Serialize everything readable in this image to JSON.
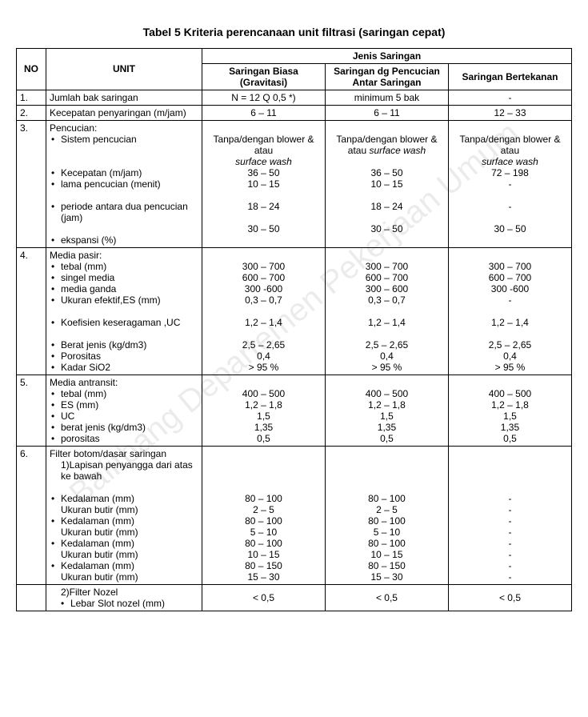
{
  "title": "Tabel 5  Kriteria perencanaan unit filtrasi (saringan cepat)",
  "watermark": "Balitbang Departemen Pekerjaan Umum",
  "headers": {
    "no": "NO",
    "unit": "UNIT",
    "jenis": "Jenis Saringan",
    "c1": "Saringan Biasa (Gravitasi)",
    "c2": "Saringan dg Pencucian Antar Saringan",
    "c3": "Saringan Bertekanan"
  },
  "r1": {
    "no": "1.",
    "unit": "Jumlah bak saringan",
    "c1": "N = 12 Q 0,5 *)",
    "c2": "minimum 5 bak",
    "c3": "-"
  },
  "r2": {
    "no": "2.",
    "unit": "Kecepatan penyaringan (m/jam)",
    "c1": "6 – 11",
    "c2": "6 – 11",
    "c3": "12 – 33"
  },
  "r3": {
    "no": "3.",
    "head": "Pencucian:",
    "b1": "Sistem pencucian",
    "c1_1": "Tanpa/dengan blower & atau",
    "c1_1i": "surface wash",
    "c2_1": "Tanpa/dengan blower & atau ",
    "c2_1i": "surface wash",
    "c3_1": "Tanpa/dengan blower & atau",
    "c3_1i": "surface wash",
    "b2": "Kecepatan (m/jam)",
    "c1_2": "36 – 50",
    "c2_2": "36 – 50",
    "c3_2": "72 – 198",
    "b3": "lama pencucian (menit)",
    "c1_3": "10 – 15",
    "c2_3": "10 – 15",
    "c3_3": "-",
    "b4": "periode antara dua pencucian (jam)",
    "c1_4": "18 – 24",
    "c2_4": "18 – 24",
    "c3_4": "-",
    "b5": "ekspansi (%)",
    "c1_5": "30 – 50",
    "c2_5": "30 – 50",
    "c3_5": "30 – 50"
  },
  "r4": {
    "no": "4.",
    "head": "Media pasir:",
    "b1": "tebal (mm)",
    "c1_1": "300 – 700",
    "c2_1": "300 – 700",
    "c3_1": "300 – 700",
    "b2": "singel media",
    "c1_2": "600 – 700",
    "c2_2": "600 – 700",
    "c3_2": "600 – 700",
    "b3": "media ganda",
    "c1_3": "300 -600",
    "c2_3": "300 – 600",
    "c3_3": "300 -600",
    "b4": "Ukuran efektif,ES (mm)",
    "c1_4": "0,3 – 0,7",
    "c2_4": "0,3 – 0,7",
    "c3_4": "-",
    "b5": "Koefisien keseragaman ,UC",
    "c1_5": "1,2 – 1,4",
    "c2_5": "1,2 – 1,4",
    "c3_5": "1,2 – 1,4",
    "b6": "Berat jenis (kg/dm3)",
    "c1_6": "2,5 – 2,65",
    "c2_6": "2,5 – 2,65",
    "c3_6": "2,5 – 2,65",
    "b7": "Porositas",
    "c1_7": "0,4",
    "c2_7": "0,4",
    "c3_7": "0,4",
    "b8": "Kadar SiO2",
    "c1_8": "> 95 %",
    "c2_8": "> 95 %",
    "c3_8": "> 95 %"
  },
  "r5": {
    "no": "5.",
    "head": "Media antransit:",
    "b1": "tebal (mm)",
    "c1_1": "400 – 500",
    "c2_1": "400 – 500",
    "c3_1": "400 – 500",
    "b2": "ES (mm)",
    "c1_2": "1,2 – 1,8",
    "c2_2": "1,2 – 1,8",
    "c3_2": "1,2 – 1,8",
    "b3": "UC",
    "c1_3": "1,5",
    "c2_3": "1,5",
    "c3_3": "1,5",
    "b4": "berat jenis (kg/dm3)",
    "c1_4": "1,35",
    "c2_4": "1,35",
    "c3_4": "1,35",
    "b5": "porositas",
    "c1_5": "0,5",
    "c2_5": "0,5",
    "c3_5": "0,5"
  },
  "r6": {
    "no": "6.",
    "head": "Filter botom/dasar saringan",
    "sub1": "1)Lapisan penyangga dari atas ke bawah",
    "a1": "Kedalaman (mm)",
    "a1v1": "80 – 100",
    "a1v2": "80 – 100",
    "a1v3": "-",
    "a2": "Ukuran butir (mm)",
    "a2v1": "2 – 5",
    "a2v2": "2 – 5",
    "a2v3": "-",
    "a3": "Kedalaman (mm)",
    "a3v1": "80 – 100",
    "a3v2": "80 – 100",
    "a3v3": "-",
    "a4": "Ukuran butir (mm)",
    "a4v1": "5 – 10",
    "a4v2": "5 – 10",
    "a4v3": "-",
    "a5": "Kedalaman (mm)",
    "a5v1": "80 – 100",
    "a5v2": "80 – 100",
    "a5v3": "-",
    "a6": "Ukuran butir (mm)",
    "a6v1": "10 – 15",
    "a6v2": "10 – 15",
    "a6v3": "-",
    "a7": "Kedalaman (mm)",
    "a7v1": "80 – 150",
    "a7v2": "80 – 150",
    "a7v3": "-",
    "a8": "Ukuran butir (mm)",
    "a8v1": "15 – 30",
    "a8v2": "15 – 30",
    "a8v3": "-"
  },
  "r7": {
    "sub2": "2)Filter Nozel",
    "b1": "Lebar Slot nozel (mm)",
    "c1": "< 0,5",
    "c2": "< 0,5",
    "c3": "< 0,5"
  }
}
